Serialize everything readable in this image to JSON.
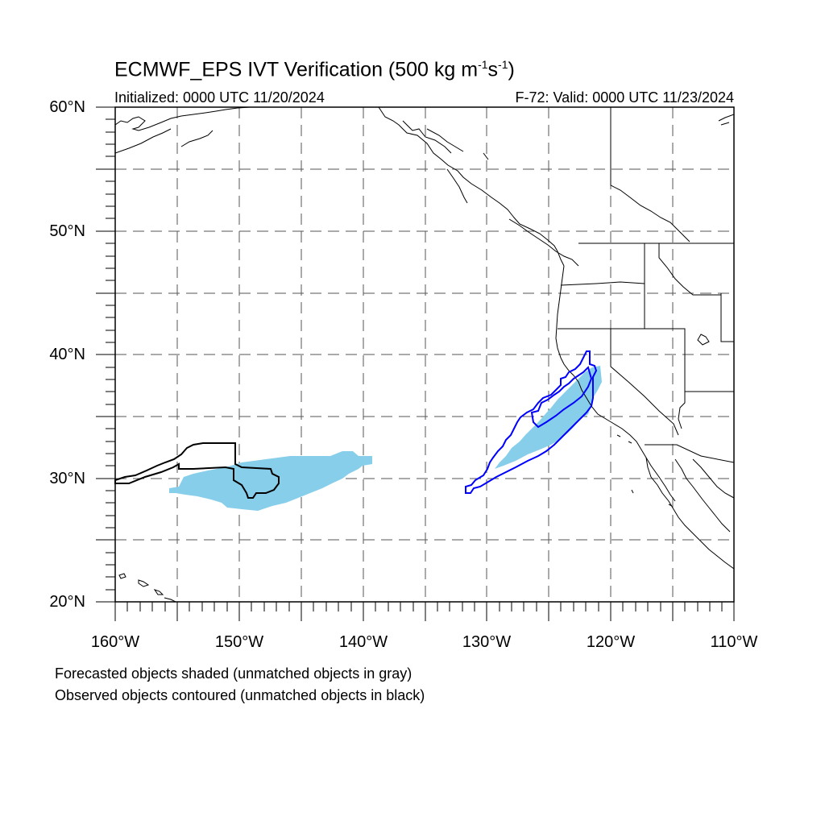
{
  "title": {
    "prefix": "ECMWF_EPS IVT Verification (500 kg m",
    "sup1": "-1",
    "mid": "s",
    "sup2": "-1",
    "suffix": ")"
  },
  "initialized": "Initialized: 0000 UTC 11/20/2024",
  "valid": "F-72: Valid: 0000 UTC 11/23/2024",
  "map": {
    "lon_range": [
      -160,
      -110
    ],
    "lat_range": [
      20,
      60
    ],
    "gridlines": "dashed every 5 degrees",
    "lat_labels": [
      "60°N",
      "50°N",
      "40°N",
      "30°N",
      "20°N"
    ],
    "lon_labels": [
      "160°W",
      "150°W",
      "140°W",
      "130°W",
      "120°W",
      "110°W"
    ]
  },
  "legend": {
    "line1": "Forecasted objects shaded (unmatched objects in gray)",
    "line2": "Observed objects contoured (unmatched objects in black)"
  },
  "colors": {
    "forecast_shade": "#87ceeb",
    "matched_contour": "#0000ff",
    "unmatched_contour": "#000000"
  }
}
